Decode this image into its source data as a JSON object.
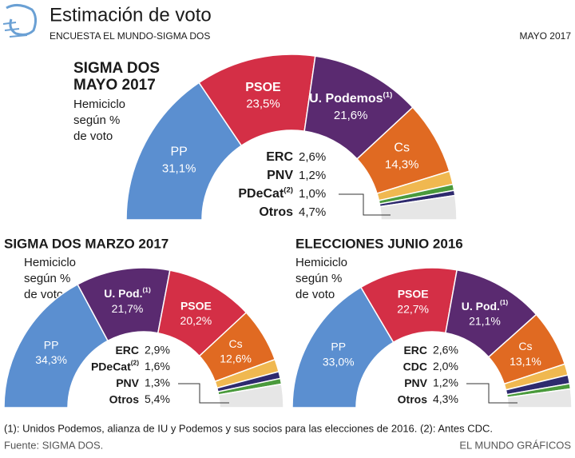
{
  "header": {
    "title": "Estimación de voto",
    "subtitle": "ENCUESTA EL MUNDO-SIGMA DOS",
    "date": "MAYO 2017"
  },
  "chart_data": [
    {
      "type": "hemicycle",
      "title": [
        "SIGMA DOS",
        "MAYO 2017"
      ],
      "subtitle": [
        "Hemiciclo",
        "según %",
        "de voto"
      ],
      "slices": [
        {
          "name": "PP",
          "value": 31.1,
          "value_label": "31,1%",
          "color": "#5b8fd0"
        },
        {
          "name": "PSOE",
          "value": 23.5,
          "value_label": "23,5%",
          "color": "#d42f46"
        },
        {
          "name": "U. Podemos",
          "note": "(1)",
          "value": 21.6,
          "value_label": "21,6%",
          "color": "#5a2a70"
        },
        {
          "name": "Cs",
          "value": 14.3,
          "value_label": "14,3%",
          "color": "#e06a22"
        },
        {
          "name": "ERC",
          "value": 2.6,
          "value_label": "2,6%",
          "color": "#f0b850"
        },
        {
          "name": "PNV",
          "value": 1.2,
          "value_label": "1,2%",
          "color": "#4a9a3c"
        },
        {
          "name": "PDeCat",
          "note": "(2)",
          "value": 1.0,
          "value_label": "1,0%",
          "color": "#2e2a6e"
        },
        {
          "name": "Otros",
          "value": 4.7,
          "value_label": "4,7%",
          "color": "#e6e6e6"
        }
      ]
    },
    {
      "type": "hemicycle",
      "title": [
        "SIGMA DOS MARZO 2017"
      ],
      "subtitle": [
        "Hemiciclo",
        "según %",
        "de voto"
      ],
      "slices": [
        {
          "name": "PP",
          "value": 34.3,
          "value_label": "34,3%",
          "color": "#5b8fd0"
        },
        {
          "name": "U. Pod.",
          "note": "(1)",
          "value": 21.7,
          "value_label": "21,7%",
          "color": "#5a2a70"
        },
        {
          "name": "PSOE",
          "value": 20.2,
          "value_label": "20,2%",
          "color": "#d42f46"
        },
        {
          "name": "Cs",
          "value": 12.6,
          "value_label": "12,6%",
          "color": "#e06a22"
        },
        {
          "name": "ERC",
          "value": 2.9,
          "value_label": "2,9%",
          "color": "#f0b850"
        },
        {
          "name": "PDeCat",
          "note": "(2)",
          "value": 1.6,
          "value_label": "1,6%",
          "color": "#2e2a6e"
        },
        {
          "name": "PNV",
          "value": 1.3,
          "value_label": "1,3%",
          "color": "#4a9a3c"
        },
        {
          "name": "Otros",
          "value": 5.4,
          "value_label": "5,4%",
          "color": "#e6e6e6"
        }
      ]
    },
    {
      "type": "hemicycle",
      "title": [
        "ELECCIONES JUNIO 2016"
      ],
      "subtitle": [
        "Hemiciclo",
        "según %",
        "de voto"
      ],
      "slices": [
        {
          "name": "PP",
          "value": 33.0,
          "value_label": "33,0%",
          "color": "#5b8fd0"
        },
        {
          "name": "PSOE",
          "value": 22.7,
          "value_label": "22,7%",
          "color": "#d42f46"
        },
        {
          "name": "U. Pod.",
          "note": "(1)",
          "value": 21.1,
          "value_label": "21,1%",
          "color": "#5a2a70"
        },
        {
          "name": "Cs",
          "value": 13.1,
          "value_label": "13,1%",
          "color": "#e06a22"
        },
        {
          "name": "ERC",
          "value": 2.6,
          "value_label": "2,6%",
          "color": "#f0b850"
        },
        {
          "name": "CDC",
          "value": 2.0,
          "value_label": "2,0%",
          "color": "#2e2a6e"
        },
        {
          "name": "PNV",
          "value": 1.2,
          "value_label": "1,2%",
          "color": "#4a9a3c"
        },
        {
          "name": "Otros",
          "value": 4.3,
          "value_label": "4,3%",
          "color": "#e6e6e6"
        }
      ]
    }
  ],
  "footer": {
    "note": "(1): Unidos Podemos, alianza de IU y Podemos y sus socios para las elecciones de 2016. (2): Antes CDC.",
    "source": "Fuente: SIGMA DOS.",
    "credit": "EL MUNDO GRÁFICOS"
  }
}
